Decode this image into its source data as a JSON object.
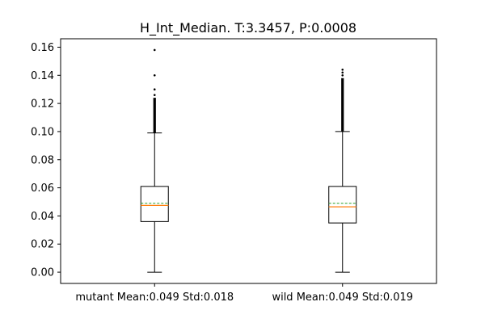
{
  "chart_data": {
    "type": "box",
    "title": "H_Int_Median. T:3.3457, P:0.0008",
    "xlabel": "",
    "ylabel": "",
    "ylim": [
      -0.008,
      0.166
    ],
    "yticks": [
      0.0,
      0.02,
      0.04,
      0.06,
      0.08,
      0.1,
      0.12,
      0.14,
      0.16
    ],
    "ytick_labels": [
      "0.00",
      "0.02",
      "0.04",
      "0.06",
      "0.08",
      "0.10",
      "0.12",
      "0.14",
      "0.16"
    ],
    "categories": [
      "mutant Mean:0.049 Std:0.018",
      "wild Mean:0.049 Std:0.019"
    ],
    "boxes": [
      {
        "category": "mutant Mean:0.049 Std:0.018",
        "whisker_low": 0.0,
        "q1": 0.036,
        "median": 0.0475,
        "mean": 0.049,
        "q3": 0.061,
        "whisker_high": 0.099,
        "outliers_dense": [
          0.099,
          0.124
        ],
        "outliers": [
          0.126,
          0.13,
          0.14,
          0.158
        ]
      },
      {
        "category": "wild Mean:0.049 Std:0.019",
        "whisker_low": 0.0,
        "q1": 0.035,
        "median": 0.0465,
        "mean": 0.049,
        "q3": 0.061,
        "whisker_high": 0.1,
        "outliers_dense": [
          0.1,
          0.138
        ],
        "outliers": [
          0.14,
          0.142,
          0.144
        ]
      }
    ],
    "colors": {
      "box": "#000000",
      "median": "#ff7f0e",
      "mean": "#2ca02c",
      "outlier": "#000000"
    },
    "grid": false,
    "legend": "none"
  }
}
